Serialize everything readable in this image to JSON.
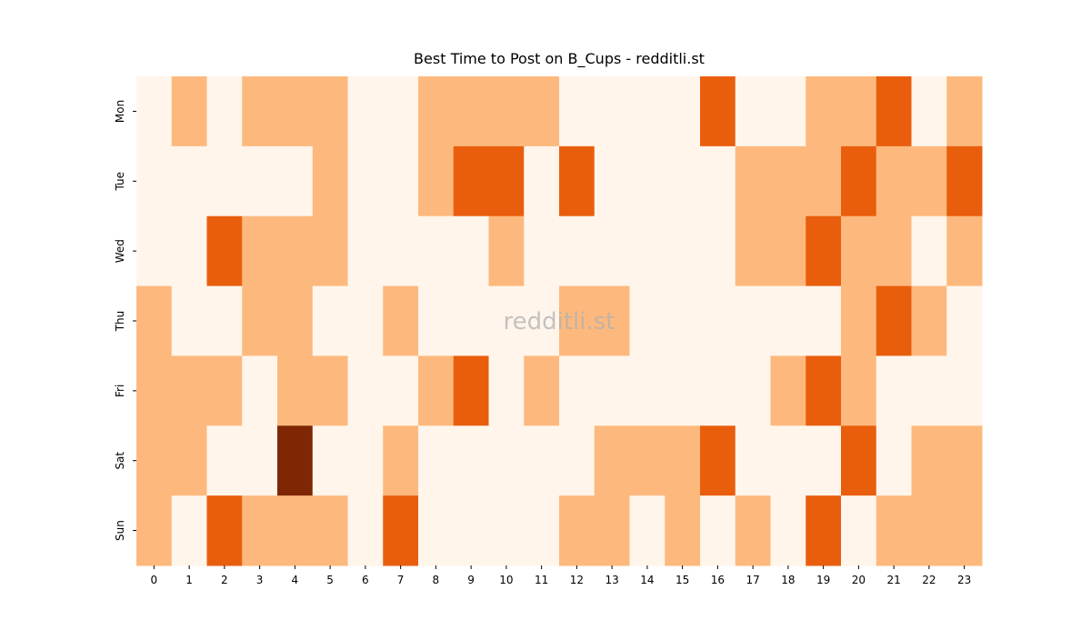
{
  "chart_data": {
    "type": "heatmap",
    "title": "Best Time to Post on B_Cups - redditli.st",
    "watermark": "redditli.st",
    "categories": [
      0,
      1,
      2,
      3,
      4,
      5,
      6,
      7,
      8,
      9,
      10,
      11,
      12,
      13,
      14,
      15,
      16,
      17,
      18,
      19,
      20,
      21,
      22,
      23
    ],
    "rows": [
      "Mon",
      "Tue",
      "Wed",
      "Thu",
      "Fri",
      "Sat",
      "Sun"
    ],
    "values": [
      [
        0,
        1,
        0,
        1,
        1,
        1,
        0,
        0,
        1,
        1,
        1,
        1,
        0,
        0,
        0,
        0,
        2,
        0,
        0,
        1,
        1,
        2,
        0,
        1
      ],
      [
        0,
        0,
        0,
        0,
        0,
        1,
        0,
        0,
        1,
        2,
        2,
        0,
        2,
        0,
        0,
        0,
        0,
        1,
        1,
        1,
        2,
        1,
        1,
        2
      ],
      [
        0,
        0,
        2,
        1,
        1,
        1,
        0,
        0,
        0,
        0,
        1,
        0,
        0,
        0,
        0,
        0,
        0,
        1,
        1,
        2,
        1,
        1,
        0,
        1
      ],
      [
        1,
        0,
        0,
        1,
        1,
        0,
        0,
        1,
        0,
        0,
        0,
        0,
        1,
        1,
        0,
        0,
        0,
        0,
        0,
        0,
        1,
        2,
        1,
        0
      ],
      [
        1,
        1,
        1,
        0,
        1,
        1,
        0,
        0,
        1,
        2,
        0,
        1,
        0,
        0,
        0,
        0,
        0,
        0,
        1,
        2,
        1,
        0,
        0,
        0
      ],
      [
        1,
        1,
        0,
        0,
        3,
        0,
        0,
        1,
        0,
        0,
        0,
        0,
        0,
        1,
        1,
        1,
        2,
        0,
        0,
        0,
        2,
        0,
        1,
        1
      ],
      [
        1,
        0,
        2,
        1,
        1,
        1,
        0,
        2,
        0,
        0,
        0,
        0,
        1,
        1,
        0,
        1,
        0,
        1,
        0,
        2,
        0,
        1,
        1,
        1
      ]
    ],
    "color_scale": [
      "#fff5eb",
      "#fdb97d",
      "#e95e0d",
      "#7f2704"
    ]
  }
}
